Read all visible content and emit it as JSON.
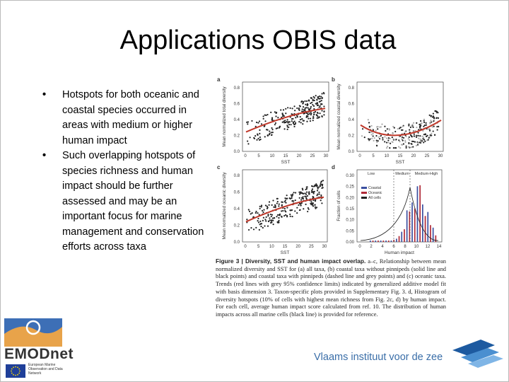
{
  "header": {
    "title": "Applications OBIS data"
  },
  "bullets": [
    "Hotspots for both oceanic and coastal species occurred in areas with medium or higher human impact",
    "Such overlapping hotspots of species richness and human impact should be further assessed and may be an important focus for marine management and conservation efforts across taxa"
  ],
  "figure": {
    "panels": [
      {
        "letter": "a",
        "ylabel": "Mean normalized total diversity",
        "xlabel": "SST",
        "yticks": [
          "0.8",
          "0.6",
          "0.4",
          "0.2",
          "0.0"
        ],
        "xticks": [
          "0",
          "5",
          "10",
          "15",
          "20",
          "25",
          "30"
        ]
      },
      {
        "letter": "b",
        "ylabel": "Mean normalized coastal diversity",
        "xlabel": "SST",
        "yticks": [
          "0.8",
          "0.6",
          "0.4",
          "0.2",
          "0.0"
        ],
        "xticks": [
          "0",
          "5",
          "10",
          "15",
          "20",
          "25",
          "30"
        ]
      },
      {
        "letter": "c",
        "ylabel": "Mean normalized oceanic diversity",
        "xlabel": "SST",
        "yticks": [
          "0.8",
          "0.6",
          "0.4",
          "0.2",
          "0.0"
        ],
        "xticks": [
          "0",
          "5",
          "10",
          "15",
          "20",
          "25",
          "30"
        ]
      },
      {
        "letter": "d",
        "ylabel": "Fraction of cells",
        "xlabel": "Human impact",
        "yticks": [
          "0.30",
          "0.25",
          "0.20",
          "0.15",
          "0.10",
          "0.05",
          "0.00"
        ],
        "xticks": [
          "0",
          "2",
          "4",
          "6",
          "8",
          "10",
          "12",
          "14"
        ]
      }
    ],
    "impact_levels": [
      "Low",
      "Medium",
      "Medium-High"
    ],
    "legend": [
      "Coastal",
      "Oceanic",
      "All cells"
    ],
    "caption_title": "Figure 3 | Diversity, SST and human impact overlap.",
    "caption": "a–c, Relationship between mean normalized diversity and SST for (a) all taxa, (b) coastal taxa without pinnipeds (solid line and black points) and coastal taxa with pinnipeds (dashed line and grey points) and (c) oceanic taxa. Trends (red lines with grey 95% confidence limits) indicated by generalized additive model fit with basis dimension 3. Taxon-specific plots provided in Supplementary Fig. 3. d, Histogram of diversity hotspots (10% of cells with highest mean richness from Fig. 2c, d) by human impact. For each cell, average human impact score calculated from ref. 10. The distribution of human impacts across all marine cells (black line) is provided for reference."
  },
  "footer": {
    "left_logo": "EMODnet",
    "left_subtitle": "European Marine Observation and Data Network",
    "right_logo": "Vlaams instituut voor de zee"
  }
}
